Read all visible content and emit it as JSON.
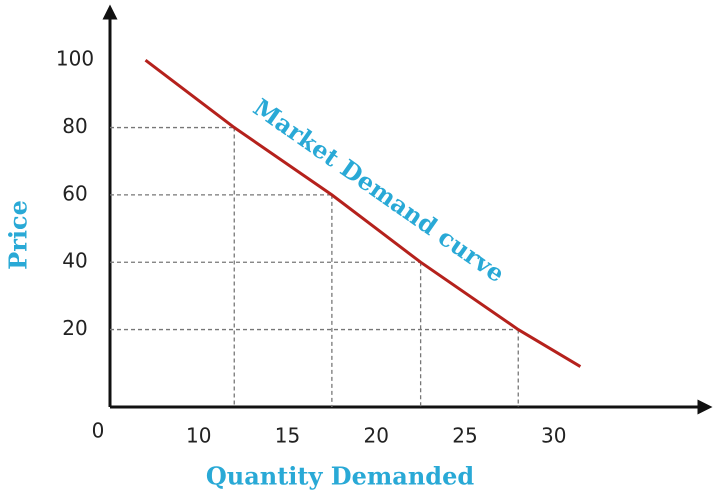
{
  "chart_data": {
    "type": "line",
    "annotation": "Market Demand curve",
    "x_label": "Quantity Demanded",
    "y_label": "Price",
    "origin_label": "0",
    "x": [
      7,
      12,
      17.5,
      22.5,
      28,
      31.5
    ],
    "series": [
      {
        "name": "Market Demand curve",
        "color": "#b5211c",
        "values": [
          100,
          80,
          60,
          40,
          20,
          9
        ]
      }
    ],
    "xlim": [
      5,
      38
    ],
    "xticks": [
      10,
      15,
      20,
      25,
      30
    ],
    "ylim": [
      -3,
      115
    ],
    "yticks": [
      20,
      40,
      60,
      80,
      100
    ],
    "grid": false
  }
}
